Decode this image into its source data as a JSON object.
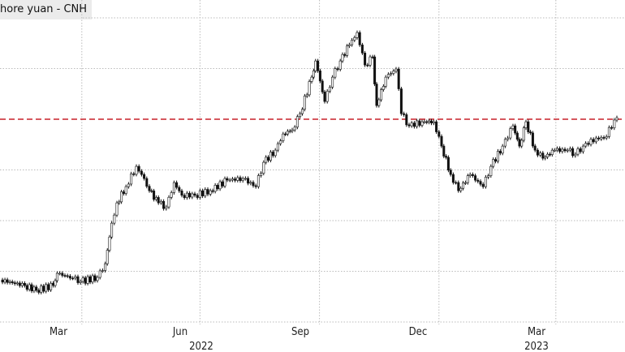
{
  "title": "hore yuan - CNH",
  "chart_data": {
    "type": "candlestick",
    "title": "hore yuan - CNH",
    "x_tick_labels": [
      "Mar",
      "Jun",
      "Sep",
      "Dec",
      "Mar"
    ],
    "year_labels": [
      "2022",
      "2023"
    ],
    "ylim": [
      6.2,
      7.4
    ],
    "y_gridlines": [
      6.2,
      6.4,
      6.6,
      6.8,
      7.0,
      7.2,
      7.4
    ],
    "reference_line": {
      "value": 7.0,
      "color": "#c8202a",
      "style": "dashed"
    },
    "grid": true,
    "colors": {
      "candle": "#111111",
      "grid": "#bbbbbb"
    },
    "series": [
      [
        "2022-01-28",
        6.366
      ],
      [
        "2022-02-16",
        6.344
      ],
      [
        "2022-02-25",
        6.325
      ],
      [
        "2022-03-10",
        6.344
      ],
      [
        "2022-03-13",
        6.392
      ],
      [
        "2022-03-25",
        6.373
      ],
      [
        "2022-03-31",
        6.36
      ],
      [
        "2022-04-13",
        6.376
      ],
      [
        "2022-04-19",
        6.43
      ],
      [
        "2022-04-24",
        6.59
      ],
      [
        "2022-04-28",
        6.67
      ],
      [
        "2022-05-05",
        6.734
      ],
      [
        "2022-05-13",
        6.814
      ],
      [
        "2022-05-17",
        6.782
      ],
      [
        "2022-05-23",
        6.718
      ],
      [
        "2022-05-30",
        6.67
      ],
      [
        "2022-06-05",
        6.654
      ],
      [
        "2022-06-11",
        6.75
      ],
      [
        "2022-06-17",
        6.7
      ],
      [
        "2022-06-27",
        6.7
      ],
      [
        "2022-07-09",
        6.718
      ],
      [
        "2022-07-22",
        6.76
      ],
      [
        "2022-08-03",
        6.766
      ],
      [
        "2022-08-13",
        6.734
      ],
      [
        "2022-08-19",
        6.83
      ],
      [
        "2022-08-28",
        6.878
      ],
      [
        "2022-09-03",
        6.942
      ],
      [
        "2022-09-10",
        6.958
      ],
      [
        "2022-09-16",
        7.022
      ],
      [
        "2022-09-25",
        7.166
      ],
      [
        "2022-09-28",
        7.23
      ],
      [
        "2022-10-05",
        7.07
      ],
      [
        "2022-10-11",
        7.166
      ],
      [
        "2022-10-17",
        7.23
      ],
      [
        "2022-10-24",
        7.294
      ],
      [
        "2022-10-30",
        7.342
      ],
      [
        "2022-11-05",
        7.214
      ],
      [
        "2022-11-11",
        7.246
      ],
      [
        "2022-11-14",
        7.054
      ],
      [
        "2022-11-21",
        7.166
      ],
      [
        "2022-11-29",
        7.198
      ],
      [
        "2022-12-03",
        7.022
      ],
      [
        "2022-12-09",
        6.974
      ],
      [
        "2022-12-19",
        6.99
      ],
      [
        "2022-12-28",
        6.99
      ],
      [
        "2023-01-03",
        6.894
      ],
      [
        "2023-01-10",
        6.782
      ],
      [
        "2023-01-16",
        6.718
      ],
      [
        "2023-01-25",
        6.782
      ],
      [
        "2023-02-04",
        6.734
      ],
      [
        "2023-02-10",
        6.814
      ],
      [
        "2023-02-19",
        6.894
      ],
      [
        "2023-02-27",
        6.974
      ],
      [
        "2023-03-04",
        6.894
      ],
      [
        "2023-03-09",
        6.99
      ],
      [
        "2023-03-16",
        6.878
      ],
      [
        "2023-03-22",
        6.846
      ],
      [
        "2023-03-31",
        6.878
      ],
      [
        "2023-04-10",
        6.878
      ],
      [
        "2023-04-16",
        6.862
      ],
      [
        "2023-04-22",
        6.894
      ],
      [
        "2023-05-02",
        6.926
      ],
      [
        "2023-05-08",
        6.926
      ],
      [
        "2023-05-18",
        7.006
      ]
    ]
  }
}
